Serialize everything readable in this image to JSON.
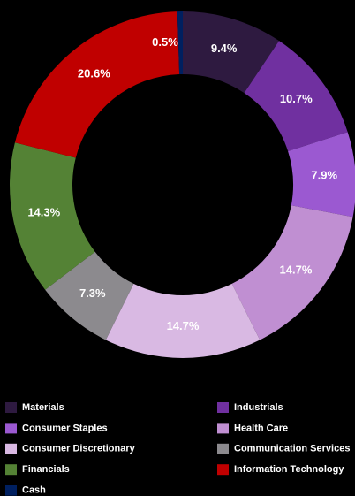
{
  "chart_data": {
    "type": "donut",
    "categories": [
      "Materials",
      "Industrials",
      "Consumer Staples",
      "Health Care",
      "Consumer Discretionary",
      "Communication Services",
      "Financials",
      "Information Technology",
      "Cash"
    ],
    "values": [
      9.4,
      10.7,
      7.9,
      14.7,
      14.7,
      7.3,
      14.3,
      20.6,
      0.5
    ],
    "value_labels": [
      "9.4%",
      "10.7%",
      "7.9%",
      "14.7%",
      "14.7%",
      "7.3%",
      "14.3%",
      "20.6%",
      "0.5%"
    ],
    "colors": [
      "#2e1a40",
      "#7030a0",
      "#9b59d1",
      "#c08fd2",
      "#d9b9e3",
      "#8c8a8e",
      "#548235",
      "#c00000",
      "#002060"
    ]
  }
}
